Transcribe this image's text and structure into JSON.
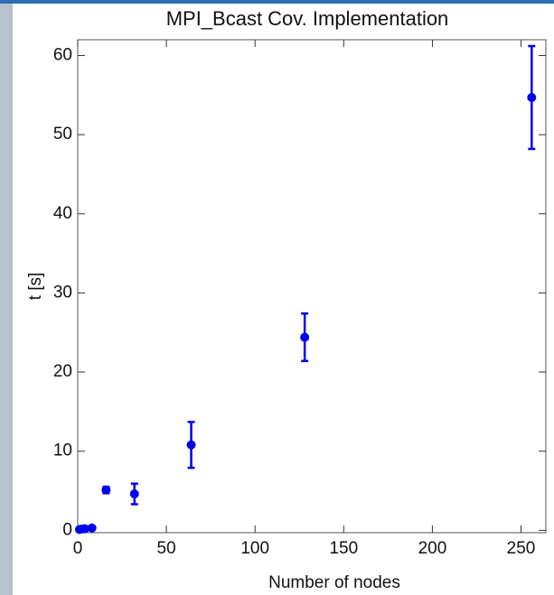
{
  "chart_data": {
    "type": "errorbar",
    "title": "MPI_Bcast Cov. Implementation",
    "x_label": "Number of nodes",
    "y_label": "t [s]",
    "x": [
      1,
      2,
      4,
      8,
      16,
      32,
      64,
      128,
      256
    ],
    "values": [
      0.1,
      0.15,
      0.2,
      0.3,
      5.1,
      4.6,
      10.8,
      24.4,
      54.7
    ],
    "errors": [
      0,
      0,
      0,
      0,
      0.4,
      1.3,
      2.9,
      3,
      6.5
    ],
    "color": "#0000ee",
    "xlim": [
      0,
      264
    ],
    "ylim": [
      -0.3,
      62
    ],
    "xticks": [
      0,
      50,
      100,
      150,
      200,
      250
    ],
    "yticks": [
      0,
      10,
      20,
      30,
      40,
      50,
      60
    ]
  }
}
